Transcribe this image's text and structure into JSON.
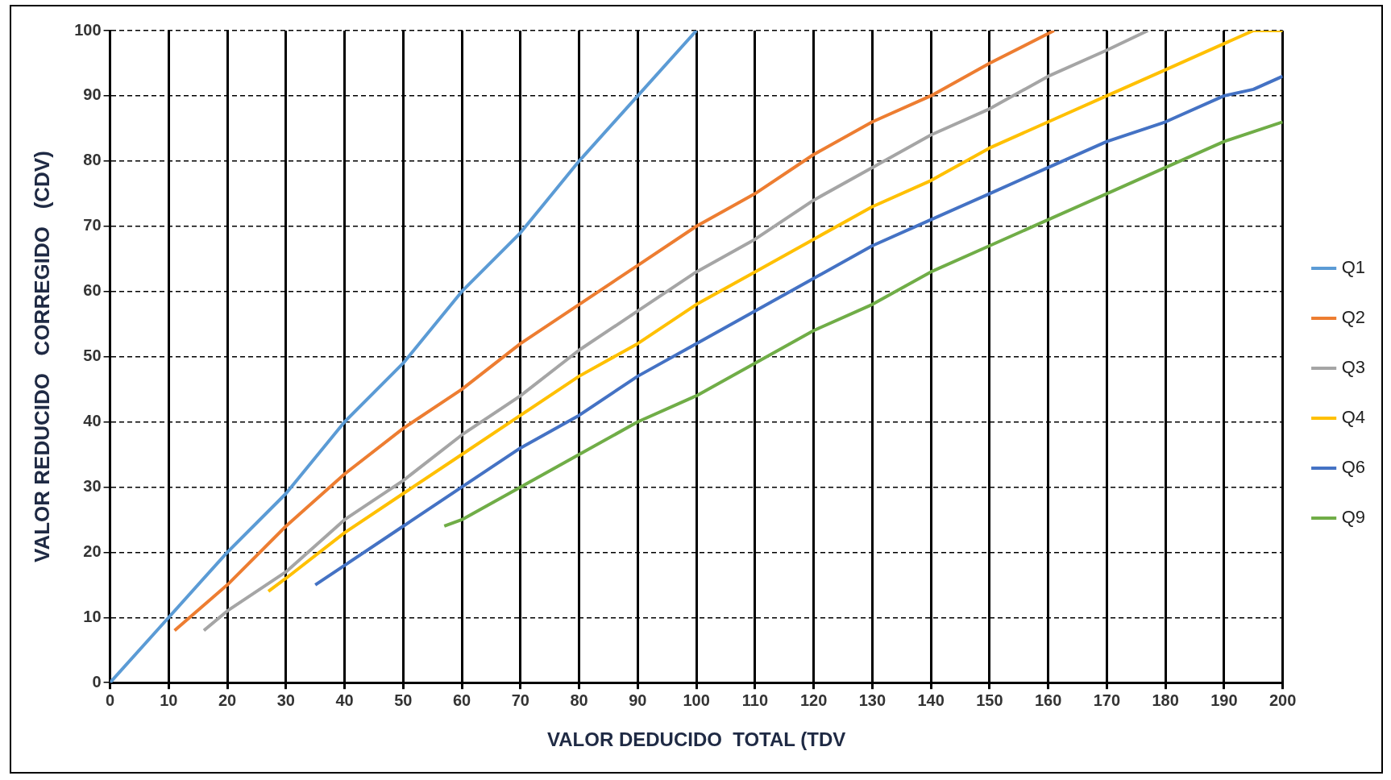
{
  "chart_data": {
    "type": "line",
    "xlabel": "VALOR DEDUCIDO  TOTAL (TDV",
    "ylabel": "VALOR REDUCIDO   CORREGIDO   (CDV)",
    "xlim": [
      0,
      200
    ],
    "xticks": [
      0,
      10,
      20,
      30,
      40,
      50,
      60,
      70,
      80,
      90,
      100,
      110,
      120,
      130,
      140,
      150,
      160,
      170,
      180,
      190,
      200
    ],
    "ylim": [
      0,
      100
    ],
    "yticks": [
      0,
      10,
      20,
      30,
      40,
      50,
      60,
      70,
      80,
      90,
      100
    ],
    "grid": true,
    "legend": "right",
    "marker": "none",
    "line_style": "solid",
    "series": [
      {
        "name": "Q1",
        "color": "#5b9bd5",
        "x": [
          0,
          10,
          20,
          30,
          40,
          50,
          60,
          70,
          80,
          90,
          100
        ],
        "values": [
          0,
          10,
          20,
          29,
          40,
          49,
          60,
          69,
          80,
          90,
          100
        ]
      },
      {
        "name": "Q2",
        "color": "#ed7d31",
        "x": [
          11,
          20,
          30,
          40,
          50,
          60,
          70,
          80,
          90,
          100,
          110,
          120,
          130,
          140,
          150,
          161
        ],
        "values": [
          8,
          15,
          24,
          32,
          39,
          45,
          52,
          58,
          64,
          70,
          75,
          81,
          86,
          90,
          95,
          100
        ]
      },
      {
        "name": "Q3",
        "color": "#a5a5a5",
        "x": [
          16,
          20,
          30,
          40,
          50,
          60,
          70,
          80,
          90,
          100,
          110,
          120,
          130,
          140,
          150,
          160,
          170,
          177
        ],
        "values": [
          8,
          11,
          17,
          25,
          31,
          38,
          44,
          51,
          57,
          63,
          68,
          74,
          79,
          84,
          88,
          93,
          97,
          100
        ]
      },
      {
        "name": "Q4",
        "color": "#ffc000",
        "x": [
          27,
          30,
          40,
          50,
          60,
          70,
          80,
          90,
          100,
          110,
          120,
          130,
          140,
          150,
          160,
          170,
          180,
          190,
          195,
          200
        ],
        "values": [
          14,
          16,
          23,
          29,
          35,
          41,
          47,
          52,
          58,
          63,
          68,
          73,
          77,
          82,
          86,
          90,
          94,
          98,
          100,
          100
        ]
      },
      {
        "name": "Q6",
        "color": "#4472c4",
        "x": [
          35,
          40,
          50,
          60,
          70,
          80,
          90,
          100,
          110,
          120,
          130,
          140,
          150,
          160,
          170,
          180,
          190,
          195,
          200
        ],
        "values": [
          15,
          18,
          24,
          30,
          36,
          41,
          47,
          52,
          57,
          62,
          67,
          71,
          75,
          79,
          83,
          86,
          90,
          91,
          93
        ]
      },
      {
        "name": "Q9",
        "color": "#70ad47",
        "x": [
          57,
          60,
          70,
          80,
          90,
          100,
          110,
          120,
          130,
          140,
          150,
          160,
          170,
          180,
          190,
          200
        ],
        "values": [
          24,
          25,
          30,
          35,
          40,
          44,
          49,
          54,
          58,
          63,
          67,
          71,
          75,
          79,
          83,
          86
        ]
      }
    ]
  }
}
